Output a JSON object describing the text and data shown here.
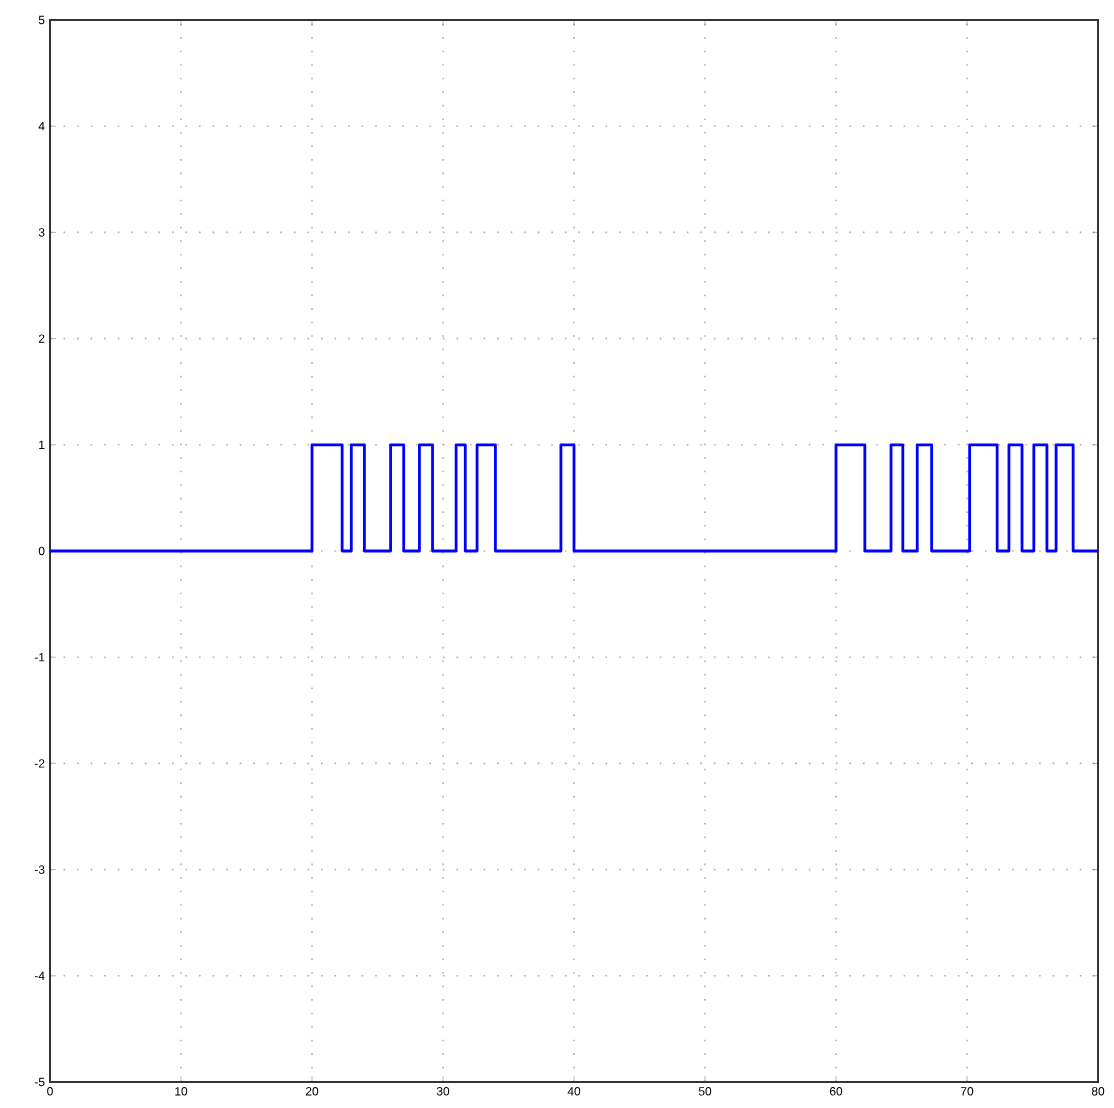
{
  "chart_data": {
    "type": "step",
    "x": [
      0,
      20,
      22.3,
      23,
      24,
      26,
      27,
      28.2,
      29.2,
      31,
      31.7,
      32.6,
      34,
      39,
      40,
      60,
      62.2,
      64.2,
      65.1,
      66.2,
      67.3,
      70.2,
      72.3,
      73.2,
      74.2,
      75.1,
      76.1,
      76.8,
      78.1,
      80
    ],
    "series": [
      {
        "color": "#0000ff",
        "values": [
          0,
          1,
          0,
          1,
          0,
          1,
          0,
          1,
          0,
          1,
          0,
          1,
          0,
          1,
          0,
          1,
          0,
          1,
          0,
          1,
          0,
          1,
          0,
          1,
          0,
          1,
          0,
          1,
          0,
          0
        ]
      }
    ],
    "xlim": [
      0,
      80
    ],
    "ylim": [
      -5,
      5
    ],
    "xticks": [
      0,
      10,
      20,
      30,
      40,
      50,
      60,
      70,
      80
    ],
    "yticks": [
      -5,
      -4,
      -3,
      -2,
      -1,
      0,
      1,
      2,
      3,
      4,
      5
    ],
    "grid": true,
    "line_style": "solid",
    "marker": "none"
  }
}
